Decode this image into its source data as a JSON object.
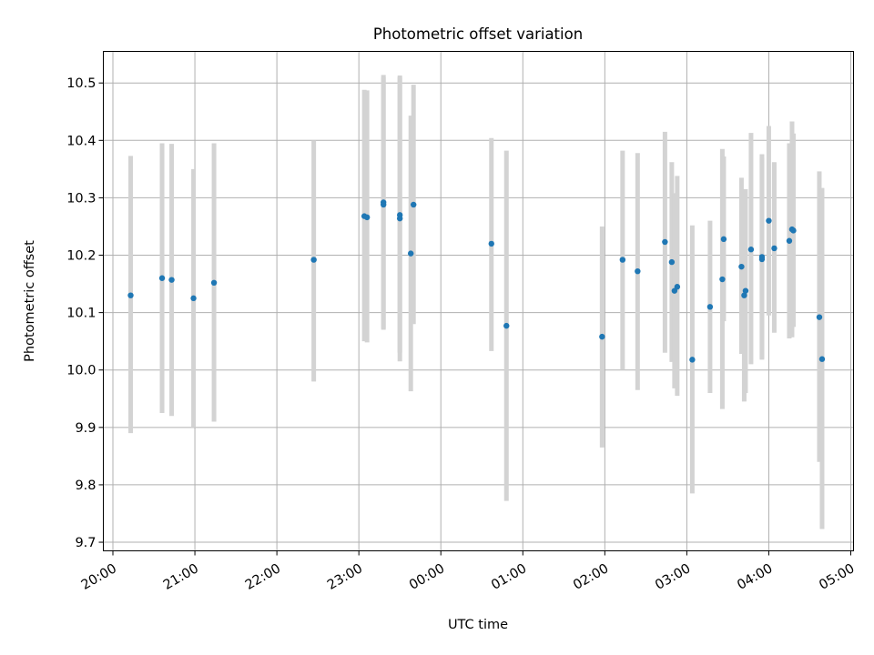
{
  "chart_data": {
    "type": "scatter",
    "title": "Photometric offset variation",
    "xlabel": "UTC time",
    "ylabel": "Photometric offset",
    "x_unit": "UTC time",
    "xlim": [
      "19:53",
      "05:02"
    ],
    "ylim": [
      9.685,
      10.555
    ],
    "x_ticks": [
      "20:00",
      "21:00",
      "22:00",
      "23:00",
      "00:00",
      "01:00",
      "02:00",
      "03:00",
      "04:00",
      "05:00"
    ],
    "y_ticks": [
      9.7,
      9.8,
      9.9,
      10.0,
      10.1,
      10.2,
      10.3,
      10.4,
      10.5
    ],
    "grid": true,
    "marker_color": "#1f77b4",
    "errorbar_color": "#d3d3d3",
    "points": [
      {
        "x": "20:13",
        "y": 10.13,
        "ylow": 9.89,
        "yhigh": 10.373
      },
      {
        "x": "20:36",
        "y": 10.16,
        "ylow": 9.925,
        "yhigh": 10.395
      },
      {
        "x": "20:43",
        "y": 10.157,
        "ylow": 9.92,
        "yhigh": 10.394
      },
      {
        "x": "20:59",
        "y": 10.125,
        "ylow": 9.9,
        "yhigh": 10.35
      },
      {
        "x": "21:14",
        "y": 10.152,
        "ylow": 9.91,
        "yhigh": 10.395
      },
      {
        "x": "22:27",
        "y": 10.192,
        "ylow": 9.98,
        "yhigh": 10.4
      },
      {
        "x": "23:04",
        "y": 10.268,
        "ylow": 10.05,
        "yhigh": 10.488
      },
      {
        "x": "23:06",
        "y": 10.266,
        "ylow": 10.048,
        "yhigh": 10.487
      },
      {
        "x": "23:18",
        "y": 10.292,
        "ylow": 10.072,
        "yhigh": 10.514
      },
      {
        "x": "23:18",
        "y": 10.288,
        "ylow": 10.07,
        "yhigh": 10.51
      },
      {
        "x": "23:30",
        "y": 10.27,
        "ylow": 10.03,
        "yhigh": 10.513
      },
      {
        "x": "23:30",
        "y": 10.264,
        "ylow": 10.015,
        "yhigh": 10.51
      },
      {
        "x": "23:38",
        "y": 10.203,
        "ylow": 9.963,
        "yhigh": 10.443
      },
      {
        "x": "23:40",
        "y": 10.288,
        "ylow": 10.08,
        "yhigh": 10.497
      },
      {
        "x": "00:37",
        "y": 10.22,
        "ylow": 10.033,
        "yhigh": 10.404
      },
      {
        "x": "00:48",
        "y": 10.077,
        "ylow": 9.772,
        "yhigh": 10.382
      },
      {
        "x": "01:58",
        "y": 10.058,
        "ylow": 9.865,
        "yhigh": 10.25
      },
      {
        "x": "02:13",
        "y": 10.192,
        "ylow": 10.0,
        "yhigh": 10.382
      },
      {
        "x": "02:24",
        "y": 10.172,
        "ylow": 9.965,
        "yhigh": 10.378
      },
      {
        "x": "02:44",
        "y": 10.223,
        "ylow": 10.03,
        "yhigh": 10.415
      },
      {
        "x": "02:49",
        "y": 10.188,
        "ylow": 10.014,
        "yhigh": 10.362
      },
      {
        "x": "02:51",
        "y": 10.138,
        "ylow": 9.968,
        "yhigh": 10.308
      },
      {
        "x": "02:53",
        "y": 10.145,
        "ylow": 9.955,
        "yhigh": 10.338
      },
      {
        "x": "03:04",
        "y": 10.018,
        "ylow": 9.785,
        "yhigh": 10.252
      },
      {
        "x": "03:17",
        "y": 10.11,
        "ylow": 9.96,
        "yhigh": 10.26
      },
      {
        "x": "03:26",
        "y": 10.158,
        "ylow": 9.932,
        "yhigh": 10.385
      },
      {
        "x": "03:27",
        "y": 10.228,
        "ylow": 10.085,
        "yhigh": 10.372
      },
      {
        "x": "03:40",
        "y": 10.18,
        "ylow": 10.028,
        "yhigh": 10.335
      },
      {
        "x": "03:42",
        "y": 10.13,
        "ylow": 9.945,
        "yhigh": 10.315
      },
      {
        "x": "03:43",
        "y": 10.138,
        "ylow": 9.96,
        "yhigh": 10.315
      },
      {
        "x": "03:47",
        "y": 10.21,
        "ylow": 10.01,
        "yhigh": 10.413
      },
      {
        "x": "03:55",
        "y": 10.193,
        "ylow": 10.018,
        "yhigh": 10.37
      },
      {
        "x": "03:55",
        "y": 10.197,
        "ylow": 10.02,
        "yhigh": 10.376
      },
      {
        "x": "04:00",
        "y": 10.26,
        "ylow": 10.095,
        "yhigh": 10.425
      },
      {
        "x": "04:04",
        "y": 10.212,
        "ylow": 10.065,
        "yhigh": 10.362
      },
      {
        "x": "04:15",
        "y": 10.225,
        "ylow": 10.055,
        "yhigh": 10.395
      },
      {
        "x": "04:17",
        "y": 10.245,
        "ylow": 10.057,
        "yhigh": 10.433
      },
      {
        "x": "04:18",
        "y": 10.243,
        "ylow": 10.075,
        "yhigh": 10.412
      },
      {
        "x": "04:37",
        "y": 10.092,
        "ylow": 9.84,
        "yhigh": 10.346
      },
      {
        "x": "04:39",
        "y": 10.019,
        "ylow": 9.723,
        "yhigh": 10.317
      }
    ]
  }
}
